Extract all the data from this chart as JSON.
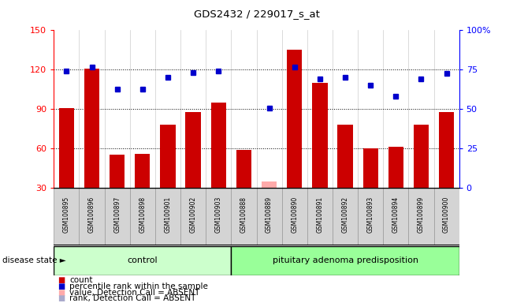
{
  "title": "GDS2432 / 229017_s_at",
  "samples": [
    "GSM100895",
    "GSM100896",
    "GSM100897",
    "GSM100898",
    "GSM100901",
    "GSM100902",
    "GSM100903",
    "GSM100888",
    "GSM100889",
    "GSM100890",
    "GSM100891",
    "GSM100892",
    "GSM100893",
    "GSM100894",
    "GSM100899",
    "GSM100900"
  ],
  "bar_values": [
    91,
    121,
    55,
    56,
    78,
    88,
    95,
    59,
    null,
    135,
    110,
    78,
    60,
    61,
    78,
    88
  ],
  "bar_absent": [
    null,
    null,
    null,
    null,
    null,
    null,
    null,
    null,
    35,
    null,
    null,
    null,
    null,
    null,
    null,
    null
  ],
  "bar_color": "#cc0000",
  "bar_absent_color": "#ffaaaa",
  "dot_values": [
    119,
    122,
    105,
    105,
    114,
    118,
    119,
    null,
    91,
    122,
    113,
    114,
    108,
    100,
    113,
    117
  ],
  "dot_absent_values": [
    null,
    null,
    null,
    null,
    null,
    null,
    null,
    null,
    91,
    null,
    null,
    null,
    null,
    null,
    null,
    null
  ],
  "dot_color": "#0000cc",
  "dot_absent_color": "#aaaacc",
  "ylim_min": 30,
  "ylim_max": 150,
  "yticks": [
    30,
    60,
    90,
    120,
    150
  ],
  "ytick_right_labels": [
    "0",
    "25",
    "50",
    "75",
    "100%"
  ],
  "grid_lines": [
    60,
    90,
    120
  ],
  "n_control": 7,
  "control_label": "control",
  "disease_label": "pituitary adenoma predisposition",
  "disease_state_text": "disease state",
  "sample_bg_color": "#d0d0d0",
  "control_bg_color": "#ccffcc",
  "disease_bg_color": "#99ff99",
  "legend": [
    {
      "color": "#cc0000",
      "label": "count"
    },
    {
      "color": "#0000cc",
      "label": "percentile rank within the sample"
    },
    {
      "color": "#ffaaaa",
      "label": "value, Detection Call = ABSENT"
    },
    {
      "color": "#aaaacc",
      "label": "rank, Detection Call = ABSENT"
    }
  ]
}
